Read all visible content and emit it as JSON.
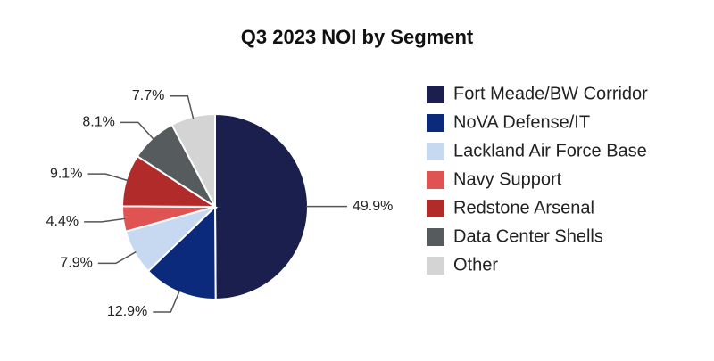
{
  "chart_data": {
    "type": "pie",
    "title": "Q3 2023 NOI by Segment",
    "categories": [
      "Fort Meade/BW Corridor",
      "NoVA Defense/IT",
      "Lackland Air Force Base",
      "Navy Support",
      "Redstone Arsenal",
      "Data Center Shells",
      "Other"
    ],
    "values": [
      49.9,
      12.9,
      7.9,
      4.4,
      9.1,
      8.1,
      7.7
    ],
    "value_labels": [
      "49.9%",
      "12.9%",
      "7.9%",
      "4.4%",
      "9.1%",
      "8.1%",
      "7.7%"
    ],
    "colors": [
      "#1a1f4e",
      "#0b2a7c",
      "#c6d9f1",
      "#e05353",
      "#b22b2b",
      "#565b5e",
      "#d4d4d4"
    ],
    "legend": "right"
  }
}
